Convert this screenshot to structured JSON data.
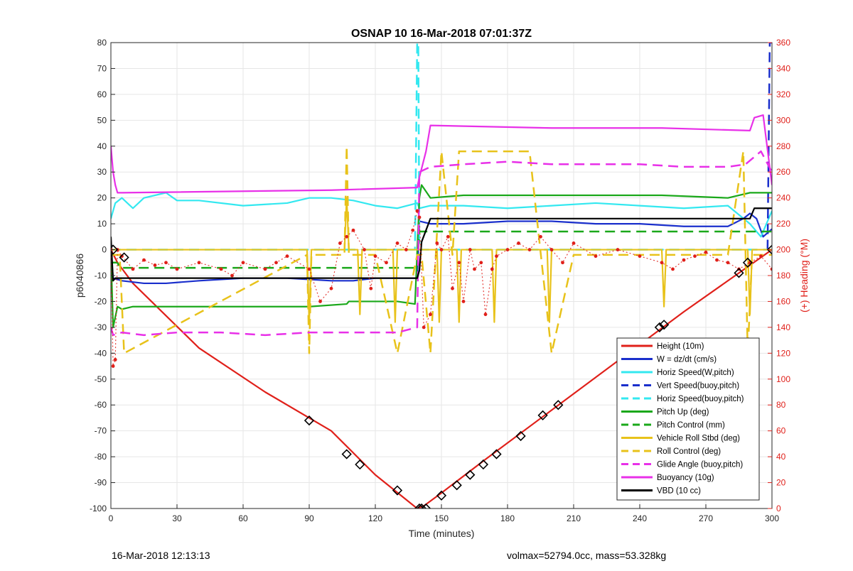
{
  "chart_data": {
    "type": "line",
    "title": "OSNAP 10 16-Mar-2018 07:01:37Z",
    "xlabel": "Time (minutes)",
    "ylabel_left": "p6040866",
    "ylabel_right": "(+) Heading (°M)",
    "xlim": [
      0,
      300
    ],
    "ylim_left": [
      -100,
      80
    ],
    "ylim_right": [
      0,
      360
    ],
    "x_ticks": [
      "0",
      "30",
      "60",
      "90",
      "120",
      "150",
      "180",
      "210",
      "240",
      "270",
      "300"
    ],
    "y_left_ticks": [
      "-100",
      "-90",
      "-80",
      "-70",
      "-60",
      "-50",
      "-40",
      "-30",
      "-20",
      "-10",
      "0",
      "10",
      "20",
      "30",
      "40",
      "50",
      "60",
      "70",
      "80"
    ],
    "y_right_ticks": [
      "0",
      "20",
      "40",
      "60",
      "80",
      "100",
      "120",
      "140",
      "160",
      "180",
      "200",
      "220",
      "240",
      "260",
      "280",
      "300",
      "320",
      "340",
      "360"
    ],
    "grid": true,
    "legend_position": "bottom-right",
    "series": [
      {
        "name": "Height (10m)",
        "color": "#e0201a",
        "style": "solid",
        "x": [
          0,
          3,
          10,
          40,
          70,
          100,
          120,
          139,
          142,
          150,
          170,
          200,
          230,
          260,
          285,
          300
        ],
        "y": [
          0,
          -5,
          -13,
          -38,
          -55,
          -70,
          -87,
          -100,
          -99,
          -94,
          -81,
          -62,
          -43,
          -24,
          -9,
          0
        ]
      },
      {
        "name": "W = dz/dt (cm/s)",
        "color": "#1a2fcc",
        "style": "solid",
        "x": [
          0,
          1,
          5,
          15,
          25,
          40,
          60,
          80,
          100,
          110,
          120,
          130,
          139,
          140,
          145,
          160,
          180,
          200,
          220,
          240,
          260,
          280,
          287,
          290,
          293,
          296,
          300
        ],
        "y": [
          0,
          -11,
          -12,
          -13,
          -13,
          -12,
          -11,
          -11,
          -12,
          -12,
          -11,
          -11,
          -11,
          11,
          10,
          10,
          11,
          11,
          10,
          10,
          9,
          9,
          12,
          14,
          12,
          5,
          8
        ]
      },
      {
        "name": "Horiz Speed(W,pitch)",
        "color": "#33e8f0",
        "style": "solid",
        "x": [
          0,
          2,
          5,
          10,
          15,
          25,
          30,
          40,
          60,
          80,
          90,
          100,
          110,
          120,
          130,
          139,
          140,
          145,
          160,
          180,
          200,
          220,
          240,
          260,
          280,
          290,
          295,
          300
        ],
        "y": [
          12,
          18,
          20,
          16,
          20,
          22,
          19,
          19,
          17,
          18,
          20,
          20,
          19,
          17,
          16,
          18,
          16,
          17,
          17,
          16,
          17,
          18,
          17,
          16,
          17,
          10,
          5,
          15
        ]
      },
      {
        "name": "Vert Speed(buoy,pitch)",
        "color": "#1a2fcc",
        "style": "dashed",
        "x": [
          298,
          299,
          300
        ],
        "y": [
          0,
          80,
          80
        ]
      },
      {
        "name": "Horiz Speed(buoy,pitch)",
        "color": "#33e8f0",
        "style": "dashed",
        "x": [
          0,
          138,
          139,
          139.5,
          140,
          300
        ],
        "y": [
          0,
          0,
          80,
          80,
          0,
          0
        ]
      },
      {
        "name": "Pitch Up (deg)",
        "color": "#1aa81a",
        "style": "solid",
        "x": [
          0,
          1,
          3,
          5,
          10,
          30,
          60,
          90,
          107,
          108,
          130,
          138,
          140,
          141,
          145,
          160,
          200,
          250,
          280,
          290,
          300
        ],
        "y": [
          0,
          -30,
          -22,
          -23,
          -22,
          -22,
          -22,
          -22,
          -21,
          -20,
          -20,
          -21,
          20,
          25,
          20,
          21,
          21,
          21,
          20,
          22,
          22
        ]
      },
      {
        "name": "Pitch Control (mm)",
        "color": "#1aa81a",
        "style": "dashed",
        "x": [
          0,
          3,
          4,
          139,
          140,
          300
        ],
        "y": [
          -5,
          -5,
          -7,
          -7,
          7,
          7
        ]
      },
      {
        "name": "Vehicle Roll Stbd (deg)",
        "color": "#e8c21a",
        "style": "solid",
        "x": [
          0,
          5,
          89,
          90,
          91,
          106,
          107,
          108,
          112,
          113,
          114,
          128,
          129,
          130,
          140,
          148,
          149,
          150,
          157,
          158,
          159,
          173,
          174,
          175,
          198,
          199,
          200,
          250,
          251,
          252,
          289,
          290,
          291,
          300
        ],
        "y": [
          0,
          0,
          0,
          -28,
          0,
          0,
          20,
          0,
          0,
          -25,
          0,
          0,
          -28,
          0,
          0,
          0,
          -28,
          0,
          0,
          -28,
          0,
          0,
          -28,
          0,
          0,
          -28,
          0,
          0,
          -22,
          0,
          0,
          -25,
          0,
          0
        ]
      },
      {
        "name": "Roll Control (deg)",
        "color": "#e8c21a",
        "style": "dashed",
        "x": [
          0,
          4,
          6,
          89,
          90,
          91,
          106,
          107,
          108,
          114,
          120,
          130,
          139,
          141,
          145,
          150,
          155,
          158,
          165,
          170,
          180,
          190,
          200,
          210,
          250,
          280,
          287,
          289,
          291,
          300
        ],
        "y": [
          -2,
          -2,
          -40,
          -2,
          -40,
          -2,
          -2,
          40,
          -2,
          -2,
          -2,
          -40,
          -2,
          -2,
          -40,
          38,
          -2,
          38,
          38,
          38,
          38,
          38,
          -40,
          -2,
          -2,
          -2,
          38,
          -40,
          -2,
          -2
        ]
      },
      {
        "name": "Glide Angle (buoy,pitch)",
        "color": "#e830e8",
        "style": "dashed",
        "x": [
          0,
          1,
          5,
          15,
          30,
          50,
          70,
          90,
          110,
          130,
          139,
          140,
          145,
          160,
          180,
          200,
          220,
          240,
          260,
          280,
          288,
          295,
          300
        ],
        "y": [
          -30,
          -33,
          -32,
          -33,
          -32,
          -32,
          -33,
          -32,
          -32,
          -32,
          -30,
          30,
          32,
          33,
          34,
          33,
          33,
          33,
          32,
          32,
          33,
          38,
          30
        ]
      },
      {
        "name": "Buoyancy (10g)",
        "color": "#e830e8",
        "style": "solid",
        "x": [
          0,
          1,
          2,
          3,
          5,
          100,
          139,
          140,
          143,
          145,
          200,
          250,
          290,
          292,
          296,
          300
        ],
        "y": [
          40,
          30,
          25,
          22,
          22,
          23,
          24,
          28,
          38,
          48,
          47,
          47,
          46,
          51,
          52,
          25
        ]
      },
      {
        "name": "VBD (10 cc)",
        "color": "#000000",
        "style": "solid",
        "x": [
          0,
          1,
          2,
          5,
          100,
          139,
          140,
          141,
          145,
          200,
          250,
          290,
          292,
          300
        ],
        "y": [
          5,
          -12,
          -11,
          -11,
          -11,
          -11,
          -8,
          3,
          12,
          12,
          12,
          12,
          16,
          16
        ]
      },
      {
        "name": "Heading",
        "axis": "right",
        "color": "#e0201a",
        "style": "dotted",
        "x": [
          0,
          1,
          2,
          3,
          5,
          10,
          15,
          20,
          25,
          30,
          40,
          50,
          55,
          60,
          70,
          75,
          80,
          90,
          95,
          100,
          104,
          107,
          110,
          115,
          118,
          120,
          125,
          130,
          134,
          137,
          139,
          140,
          142,
          145,
          148,
          150,
          153,
          155,
          158,
          160,
          163,
          165,
          168,
          170,
          173,
          175,
          180,
          185,
          190,
          195,
          200,
          205,
          210,
          220,
          230,
          240,
          250,
          255,
          260,
          265,
          270,
          275,
          280,
          285,
          290,
          295,
          300
        ],
        "y": [
          200,
          110,
          115,
          200,
          195,
          185,
          192,
          188,
          190,
          185,
          190,
          185,
          180,
          190,
          185,
          190,
          195,
          185,
          160,
          170,
          205,
          210,
          215,
          200,
          170,
          195,
          190,
          205,
          200,
          215,
          230,
          225,
          140,
          150,
          205,
          200,
          210,
          170,
          190,
          160,
          200,
          185,
          190,
          150,
          185,
          195,
          200,
          205,
          200,
          210,
          200,
          190,
          205,
          195,
          200,
          195,
          190,
          185,
          192,
          195,
          198,
          192,
          190,
          185,
          190,
          195,
          185
        ]
      }
    ],
    "markers": {
      "name": "marks on Height (10m)",
      "x": [
        1,
        6,
        90,
        107,
        113,
        130,
        140,
        141,
        143,
        150,
        157,
        163,
        169,
        175,
        186,
        196,
        203,
        249,
        251,
        285,
        289,
        300
      ],
      "y": [
        0,
        -3,
        -66,
        -79,
        -83,
        -93,
        -100,
        -100,
        -100,
        -95,
        -91,
        -87,
        -83,
        -79,
        -72,
        -64,
        -60,
        -30,
        -29,
        -9,
        -5,
        0
      ]
    }
  },
  "footer": {
    "left_text": "16-Mar-2018 12:13:13",
    "right_text": "volmax=52794.0cc, mass=53.328kg"
  }
}
